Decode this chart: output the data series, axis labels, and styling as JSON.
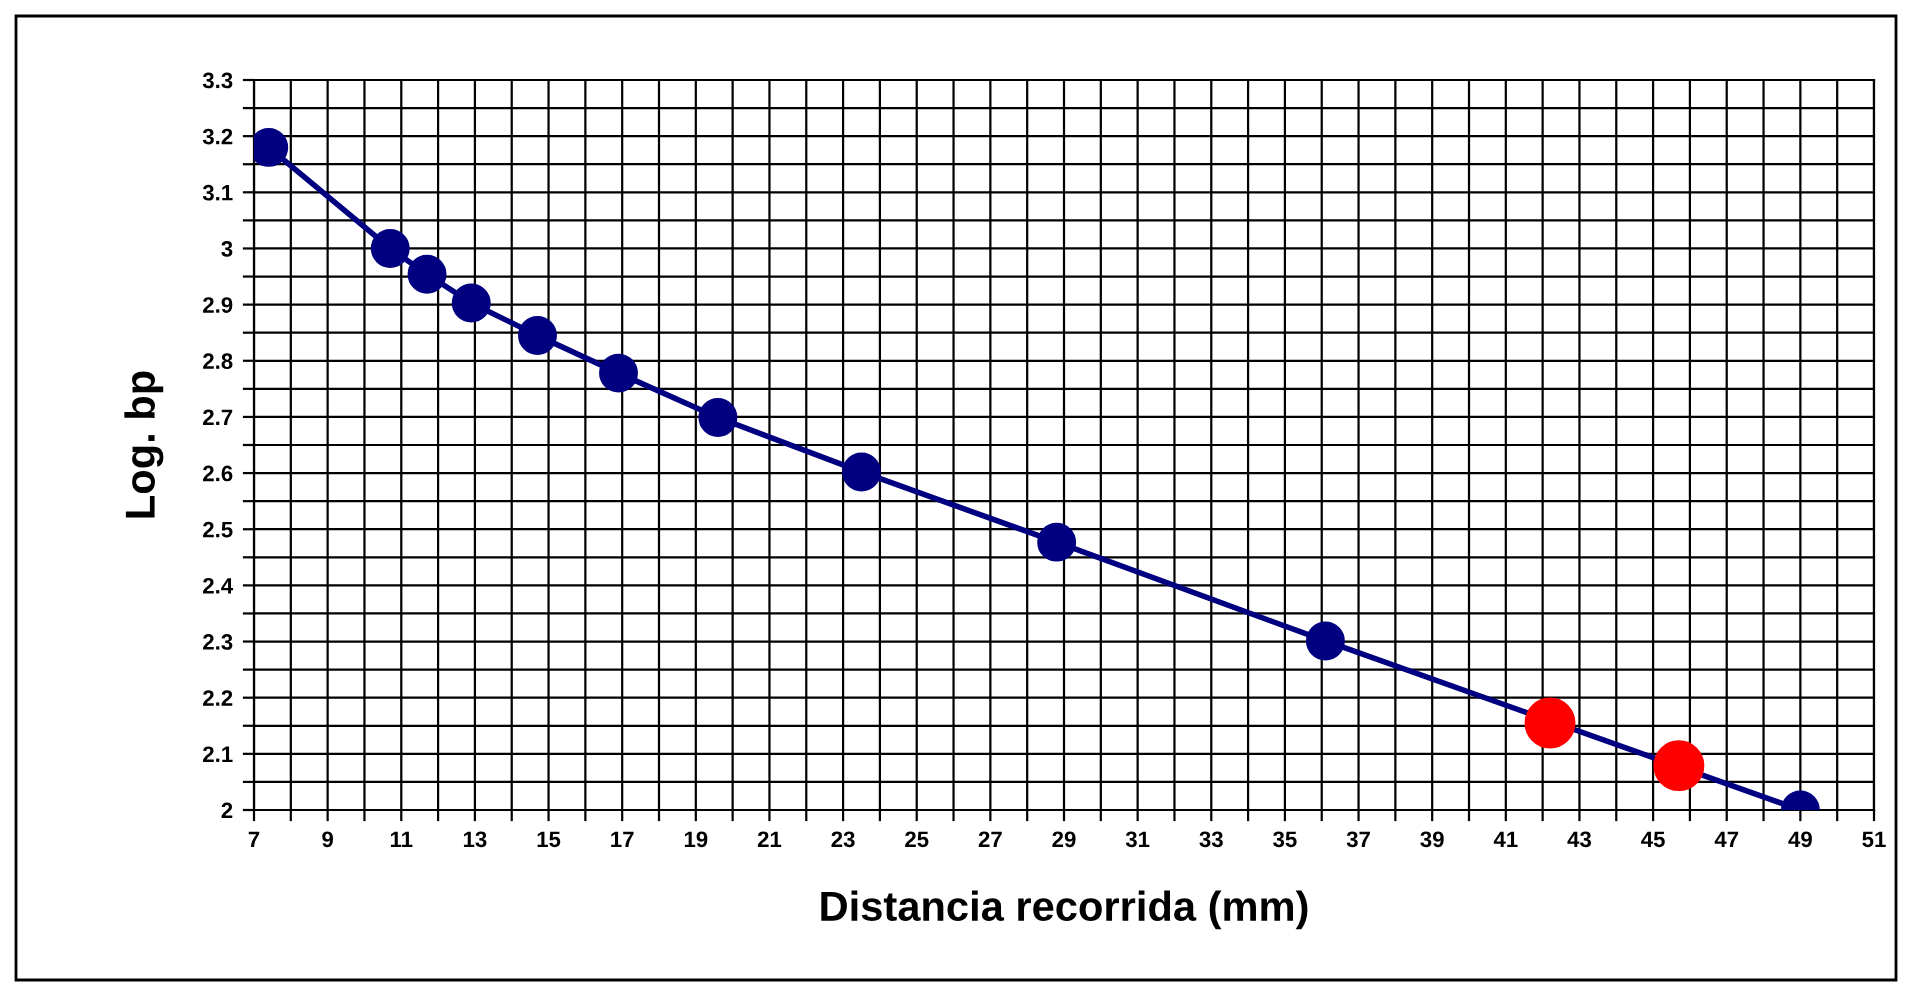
{
  "chart_data": {
    "type": "line",
    "xlabel": "Distancia recorrida (mm)",
    "ylabel": "Log. bp",
    "xlim": [
      7,
      51
    ],
    "xticks": [
      7,
      {
        "value": 8,
        "label": null
      },
      9,
      {
        "value": 10,
        "label": null
      },
      11,
      {
        "value": 12,
        "label": null
      },
      13,
      {
        "value": 14,
        "label": null
      },
      15,
      {
        "value": 16,
        "label": null
      },
      17,
      {
        "value": 18,
        "label": null
      },
      19,
      {
        "value": 20,
        "label": null
      },
      21,
      {
        "value": 22,
        "label": null
      },
      23,
      {
        "value": 24,
        "label": null
      },
      25,
      {
        "value": 26,
        "label": null
      },
      27,
      {
        "value": 28,
        "label": null
      },
      29,
      {
        "value": 30,
        "label": null
      },
      31,
      {
        "value": 32,
        "label": null
      },
      33,
      {
        "value": 34,
        "label": null
      },
      35,
      {
        "value": 36,
        "label": null
      },
      37,
      {
        "value": 38,
        "label": null
      },
      39,
      {
        "value": 40,
        "label": null
      },
      41,
      {
        "value": 42,
        "label": null
      },
      43,
      {
        "value": 44,
        "label": null
      },
      45,
      {
        "value": 46,
        "label": null
      },
      47,
      {
        "value": 48,
        "label": null
      },
      49,
      {
        "value": 50,
        "label": null
      },
      51
    ],
    "ylim": [
      2,
      3.3
    ],
    "yticks": [
      2,
      {
        "value": 2.05,
        "label": null
      },
      2.1,
      {
        "value": 2.15,
        "label": null
      },
      2.2,
      {
        "value": 2.25,
        "label": null
      },
      2.3,
      {
        "value": 2.35,
        "label": null
      },
      2.4,
      {
        "value": 2.45,
        "label": null
      },
      2.5,
      {
        "value": 2.55,
        "label": null
      },
      2.6,
      {
        "value": 2.65,
        "label": null
      },
      2.7,
      {
        "value": 2.75,
        "label": null
      },
      2.8,
      {
        "value": 2.85,
        "label": null
      },
      2.9,
      {
        "value": 2.95,
        "label": null
      },
      3,
      {
        "value": 3.05,
        "label": null
      },
      3.1,
      {
        "value": 3.15,
        "label": null
      },
      3.2,
      {
        "value": 3.25,
        "label": null
      },
      3.3
    ],
    "grid": true,
    "legend": false,
    "marker": "circle",
    "line_style": "solid",
    "series": [
      {
        "color": "#000080",
        "x": [
          7.4,
          10.7,
          11.7,
          12.9,
          14.7,
          16.9,
          19.6,
          23.5,
          28.8,
          36.1,
          49
        ],
        "values": [
          3.18,
          3.0,
          2.954,
          2.903,
          2.845,
          2.778,
          2.699,
          2.602,
          2.477,
          2.301,
          2.0
        ]
      },
      {
        "type": "scatter",
        "color": "#ff0000",
        "x": [
          42.2,
          45.7
        ],
        "values": [
          2.155,
          2.079
        ]
      }
    ]
  }
}
